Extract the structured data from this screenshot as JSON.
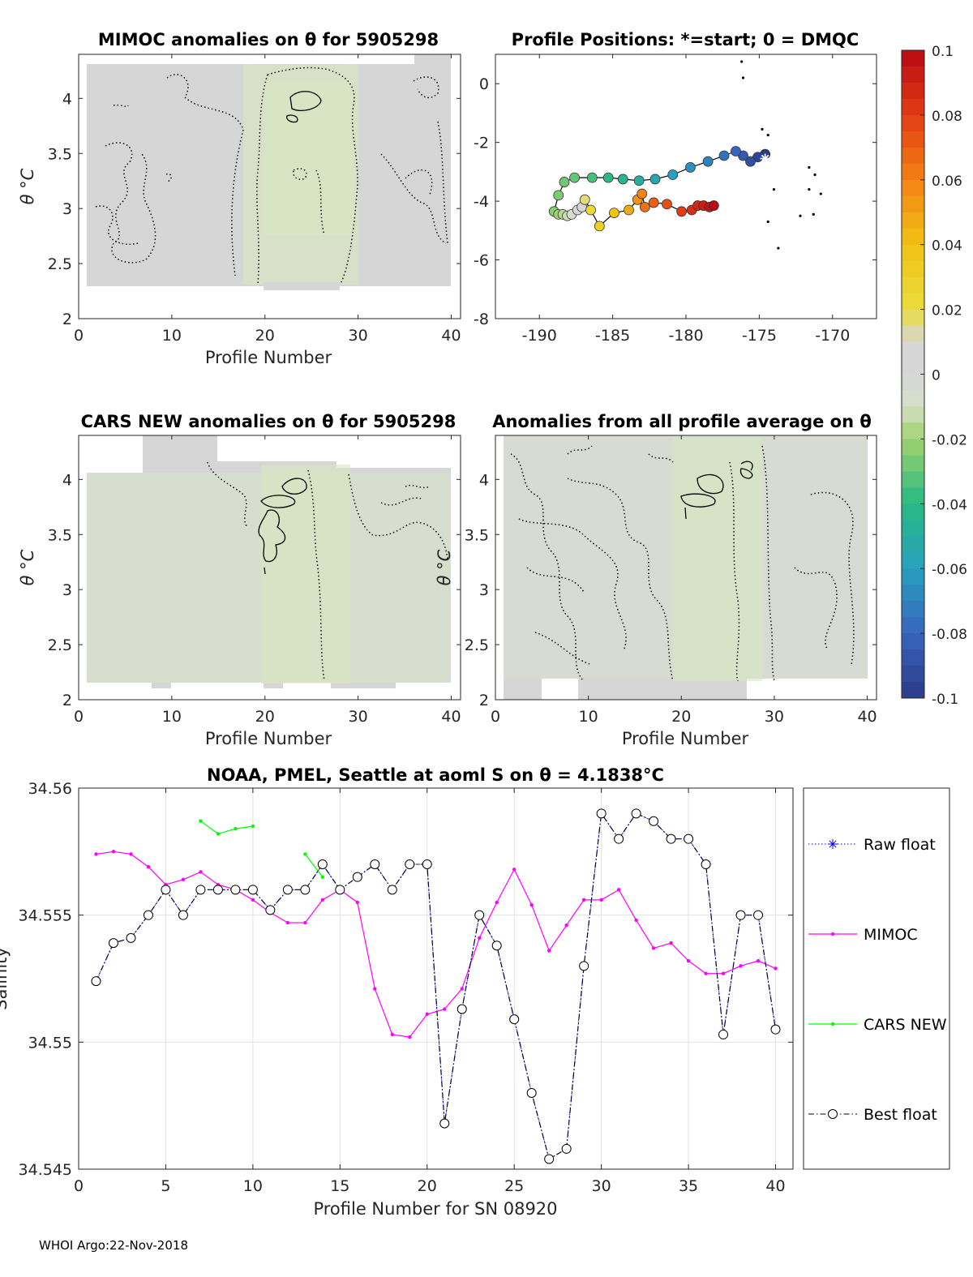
{
  "footer": "WHOI Argo:22-Nov-2018",
  "colors": {
    "anomaly_field": "#d6d6d6",
    "anomaly_negative_tint": "#d9e6c2",
    "mimoc_line": "#ff00ff",
    "cars_line": "#00ff00",
    "raw_float_marker": "#0000ff",
    "best_float_line": "#000033",
    "grid": "#e2e2e2"
  },
  "chart_data": [
    {
      "type": "heatmap",
      "title": "MIMOC anomalies on θ  for 5905298",
      "xlabel": "Profile Number",
      "ylabel": "θ °C",
      "xlim": [
        0,
        41
      ],
      "ylim": [
        2,
        4.4
      ],
      "xticks": [
        0,
        10,
        20,
        30,
        40
      ],
      "yticks": [
        2,
        2.5,
        3,
        3.5,
        4
      ],
      "data_extent": {
        "x": [
          1,
          40
        ],
        "y": [
          2.28,
          4.33
        ]
      },
      "note_visible": "anomaly field, mostly near zero with slight negative patch around profiles 20-29"
    },
    {
      "type": "scatter",
      "title": "Profile Positions: *=start; 0 = DMQC",
      "xlim": [
        -193,
        -167
      ],
      "ylim": [
        -8,
        1
      ],
      "xticks": [
        -190,
        -185,
        -180,
        -175,
        -170
      ],
      "yticks": [
        -8,
        -6,
        -4,
        -2,
        0
      ],
      "start_position": {
        "lon": -174.6,
        "lat": -2.55
      },
      "track": [
        {
          "lon": -174.6,
          "lat": -2.4,
          "c": -0.1
        },
        {
          "lon": -175.1,
          "lat": -2.5,
          "c": -0.095
        },
        {
          "lon": -175.6,
          "lat": -2.65,
          "c": -0.09
        },
        {
          "lon": -176.1,
          "lat": -2.45,
          "c": -0.085
        },
        {
          "lon": -176.6,
          "lat": -2.3,
          "c": -0.08
        },
        {
          "lon": -177.4,
          "lat": -2.45,
          "c": -0.075
        },
        {
          "lon": -178.5,
          "lat": -2.65,
          "c": -0.07
        },
        {
          "lon": -179.7,
          "lat": -2.85,
          "c": -0.065
        },
        {
          "lon": -180.9,
          "lat": -3.1,
          "c": -0.06
        },
        {
          "lon": -182.1,
          "lat": -3.25,
          "c": -0.055
        },
        {
          "lon": -183.2,
          "lat": -3.3,
          "c": -0.05
        },
        {
          "lon": -184.3,
          "lat": -3.25,
          "c": -0.045
        },
        {
          "lon": -185.3,
          "lat": -3.2,
          "c": -0.04
        },
        {
          "lon": -186.4,
          "lat": -3.2,
          "c": -0.035
        },
        {
          "lon": -187.6,
          "lat": -3.2,
          "c": -0.03
        },
        {
          "lon": -188.3,
          "lat": -3.35,
          "c": -0.028
        },
        {
          "lon": -188.7,
          "lat": -3.8,
          "c": -0.026
        },
        {
          "lon": -189.0,
          "lat": -4.35,
          "c": -0.024
        },
        {
          "lon": -188.7,
          "lat": -4.45,
          "c": -0.02
        },
        {
          "lon": -188.4,
          "lat": -4.45,
          "c": -0.016
        },
        {
          "lon": -188.1,
          "lat": -4.5,
          "c": -0.012
        },
        {
          "lon": -187.8,
          "lat": -4.45,
          "c": -0.008
        },
        {
          "lon": -187.4,
          "lat": -4.3,
          "c": 0.0
        },
        {
          "lon": -187.1,
          "lat": -4.2,
          "c": 0.008
        },
        {
          "lon": -186.9,
          "lat": -3.95,
          "c": 0.016
        },
        {
          "lon": -186.5,
          "lat": -4.3,
          "c": 0.024
        },
        {
          "lon": -185.9,
          "lat": -4.85,
          "c": 0.032
        },
        {
          "lon": -184.9,
          "lat": -4.4,
          "c": 0.04
        },
        {
          "lon": -183.9,
          "lat": -4.3,
          "c": 0.048
        },
        {
          "lon": -183.3,
          "lat": -3.95,
          "c": 0.055
        },
        {
          "lon": -183.0,
          "lat": -3.75,
          "c": 0.06
        },
        {
          "lon": -182.8,
          "lat": -4.2,
          "c": 0.065
        },
        {
          "lon": -182.2,
          "lat": -4.05,
          "c": 0.07
        },
        {
          "lon": -181.3,
          "lat": -4.1,
          "c": 0.075
        },
        {
          "lon": -180.3,
          "lat": -4.35,
          "c": 0.08
        },
        {
          "lon": -179.6,
          "lat": -4.3,
          "c": 0.085
        },
        {
          "lon": -179.2,
          "lat": -4.15,
          "c": 0.088
        },
        {
          "lon": -178.8,
          "lat": -4.15,
          "c": 0.092
        },
        {
          "lon": -178.4,
          "lat": -4.2,
          "c": 0.096
        },
        {
          "lon": -178.1,
          "lat": -4.15,
          "c": 0.1
        }
      ],
      "reference_points": [
        {
          "lon": -176.2,
          "lat": 0.75
        },
        {
          "lon": -176.1,
          "lat": 0.2
        },
        {
          "lon": -174.8,
          "lat": -1.55
        },
        {
          "lon": -174.4,
          "lat": -1.75
        },
        {
          "lon": -171.6,
          "lat": -2.85
        },
        {
          "lon": -171.2,
          "lat": -3.1
        },
        {
          "lon": -174.0,
          "lat": -3.6
        },
        {
          "lon": -171.6,
          "lat": -3.6
        },
        {
          "lon": -170.8,
          "lat": -3.75
        },
        {
          "lon": -172.2,
          "lat": -4.5
        },
        {
          "lon": -171.3,
          "lat": -4.45
        },
        {
          "lon": -174.4,
          "lat": -4.7
        },
        {
          "lon": -173.7,
          "lat": -5.6
        }
      ]
    },
    {
      "type": "heatmap",
      "title": "CARS NEW anomalies on θ for 5905298",
      "xlabel": "Profile Number",
      "ylabel": "θ °C",
      "xlim": [
        0,
        41
      ],
      "ylim": [
        2,
        4.4
      ],
      "xticks": [
        0,
        10,
        20,
        30,
        40
      ],
      "yticks": [
        2,
        2.5,
        3,
        3.5,
        4
      ],
      "data_extent": {
        "x": [
          1,
          40
        ],
        "y": [
          2.08,
          4.4
        ]
      }
    },
    {
      "type": "heatmap",
      "title": "Anomalies from all profile average on θ",
      "xlabel": "Profile Number",
      "ylabel": "θ °C",
      "xlim": [
        0,
        41
      ],
      "ylim": [
        2,
        4.4
      ],
      "xticks": [
        0,
        10,
        20,
        30,
        40
      ],
      "yticks": [
        2,
        2.5,
        3,
        3.5,
        4
      ],
      "data_extent": {
        "x": [
          1,
          40
        ],
        "y": [
          2.0,
          4.4
        ]
      }
    },
    {
      "type": "colorbar",
      "range": [
        -0.1,
        0.1
      ],
      "ticks": [
        0.1,
        0.08,
        0.06,
        0.04,
        0.02,
        0,
        -0.02,
        -0.04,
        -0.06,
        -0.08,
        -0.1
      ],
      "tick_labels": [
        "0.1",
        "0.08",
        "0.06",
        "0.04",
        "0.02",
        "0",
        "-0.02",
        "-0.04",
        "-0.06",
        "-0.08",
        "-0.1"
      ],
      "colormap": "parula-like (blue-cyan-green-grey-yellow-orange-red)"
    },
    {
      "type": "line",
      "title": "NOAA, PMEL, Seattle at aoml S on θ = 4.1838°C",
      "xlabel": "Profile Number for SN 08920",
      "ylabel": "Salinity",
      "xlim": [
        0,
        41
      ],
      "ylim": [
        34.545,
        34.56
      ],
      "xticks": [
        0,
        5,
        10,
        15,
        20,
        25,
        30,
        35,
        40
      ],
      "yticks": [
        34.545,
        34.55,
        34.555,
        34.56
      ],
      "ytick_labels": [
        "34.545",
        "34.55",
        "34.555",
        "34.56"
      ],
      "grid": true,
      "legend_position": "right, outside",
      "series": [
        {
          "name": "Raw float",
          "x": [
            1,
            2,
            3,
            4,
            5,
            6,
            7,
            8,
            9,
            10,
            11,
            12,
            13,
            14,
            15,
            16,
            17,
            18,
            19,
            20,
            21,
            22,
            23,
            24,
            25,
            26,
            27,
            28,
            29,
            30,
            31,
            32,
            33,
            34,
            35,
            36,
            37,
            38,
            39,
            40
          ],
          "y": [
            34.5524,
            34.5539,
            34.5541,
            34.555,
            34.556,
            34.555,
            34.556,
            34.556,
            34.556,
            34.556,
            34.5552,
            34.556,
            34.556,
            34.557,
            34.556,
            34.5565,
            34.557,
            34.556,
            34.557,
            34.557,
            34.5468,
            34.5513,
            34.555,
            34.5538,
            34.5509,
            34.548,
            34.5454,
            34.5458,
            34.553,
            34.559,
            34.558,
            34.559,
            34.5587,
            34.558,
            34.558,
            34.557,
            34.5503,
            34.555,
            34.555,
            34.5505
          ]
        },
        {
          "name": "MIMOC",
          "x": [
            1,
            2,
            3,
            4,
            5,
            6,
            7,
            8,
            9,
            10,
            11,
            12,
            13,
            14,
            15,
            16,
            17,
            18,
            19,
            20,
            21,
            22,
            23,
            24,
            25,
            26,
            27,
            28,
            29,
            30,
            31,
            32,
            33,
            34,
            35,
            36,
            37,
            38,
            39,
            40
          ],
          "y": [
            34.5574,
            34.5575,
            34.5574,
            34.5569,
            34.5562,
            34.5564,
            34.5567,
            34.5562,
            34.556,
            34.5556,
            34.5551,
            34.5547,
            34.5547,
            34.5556,
            34.556,
            34.5555,
            34.5521,
            34.5503,
            34.5502,
            34.5511,
            34.5513,
            34.5521,
            34.5541,
            34.5555,
            34.5568,
            34.5554,
            34.5536,
            34.5546,
            34.5556,
            34.5556,
            34.556,
            34.5548,
            34.5537,
            34.5539,
            34.5532,
            34.5527,
            34.5527,
            34.553,
            34.5532,
            34.5529
          ]
        },
        {
          "name": "CARS NEW",
          "segments": [
            {
              "x": [
                7,
                8,
                9,
                10
              ],
              "y": [
                34.5587,
                34.5582,
                34.5584,
                34.5585
              ]
            },
            {
              "x": [
                13,
                14
              ],
              "y": [
                34.5574,
                34.5565
              ]
            }
          ]
        },
        {
          "name": "Best float",
          "x": [
            1,
            2,
            3,
            4,
            5,
            6,
            7,
            8,
            9,
            10,
            11,
            12,
            13,
            14,
            15,
            16,
            17,
            18,
            19,
            20,
            21,
            22,
            23,
            24,
            25,
            26,
            27,
            28,
            29,
            30,
            31,
            32,
            33,
            34,
            35,
            36,
            37,
            38,
            39,
            40
          ],
          "y": [
            34.5524,
            34.5539,
            34.5541,
            34.555,
            34.556,
            34.555,
            34.556,
            34.556,
            34.556,
            34.556,
            34.5552,
            34.556,
            34.556,
            34.557,
            34.556,
            34.5565,
            34.557,
            34.556,
            34.557,
            34.557,
            34.5468,
            34.5513,
            34.555,
            34.5538,
            34.5509,
            34.548,
            34.5454,
            34.5458,
            34.553,
            34.559,
            34.558,
            34.559,
            34.5587,
            34.558,
            34.558,
            34.557,
            34.5503,
            34.555,
            34.555,
            34.5505
          ]
        }
      ]
    }
  ]
}
